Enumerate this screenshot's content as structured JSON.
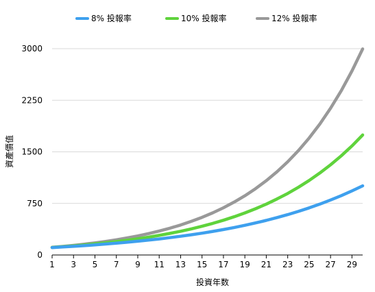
{
  "chart_data": {
    "type": "line",
    "xlabel": "投資年数",
    "ylabel": "資產價值",
    "ylim": [
      0,
      3000
    ],
    "yticks": [
      0,
      750,
      1500,
      2250,
      3000
    ],
    "xlim": [
      1,
      30
    ],
    "xticks": [
      1,
      3,
      5,
      7,
      9,
      11,
      13,
      15,
      17,
      19,
      21,
      23,
      25,
      27,
      29
    ],
    "grid": "horizontal",
    "legend_position": "top-center",
    "x": [
      1,
      2,
      3,
      4,
      5,
      6,
      7,
      8,
      9,
      10,
      11,
      12,
      13,
      14,
      15,
      16,
      17,
      18,
      19,
      20,
      21,
      22,
      23,
      24,
      25,
      26,
      27,
      28,
      29,
      30
    ],
    "series": [
      {
        "name": "8% 投報率",
        "color": "#3ea0ee",
        "values": [
          108,
          117,
          126,
          136,
          147,
          159,
          171,
          185,
          200,
          216,
          233,
          252,
          272,
          294,
          317,
          343,
          370,
          400,
          432,
          466,
          503,
          544,
          587,
          634,
          685,
          740,
          799,
          863,
          932,
          1006
        ]
      },
      {
        "name": "10% 投報率",
        "color": "#5fd33c",
        "values": [
          110,
          121,
          133,
          146,
          161,
          177,
          195,
          214,
          236,
          259,
          285,
          314,
          345,
          380,
          418,
          459,
          505,
          556,
          612,
          673,
          740,
          814,
          895,
          985,
          1083,
          1192,
          1311,
          1442,
          1586,
          1745
        ]
      },
      {
        "name": "12% 投報率",
        "color": "#999999",
        "values": [
          112,
          125,
          140,
          157,
          176,
          197,
          221,
          248,
          277,
          311,
          348,
          390,
          436,
          489,
          547,
          613,
          687,
          769,
          861,
          965,
          1080,
          1210,
          1355,
          1518,
          1700,
          1904,
          2133,
          2389,
          2676,
          2996
        ]
      }
    ]
  }
}
